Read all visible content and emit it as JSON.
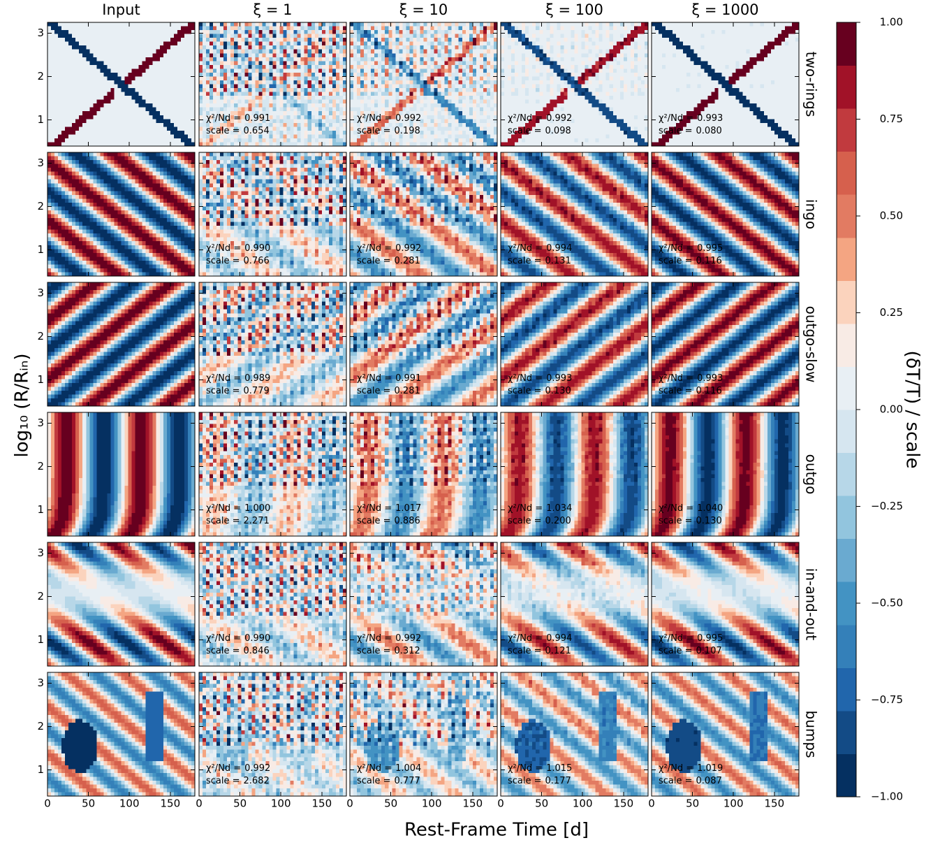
{
  "chart_data": {
    "type": "heatmap-grid",
    "columns": [
      "Input",
      "ξ = 1",
      "ξ = 10",
      "ξ = 100",
      "ξ = 1000"
    ],
    "rows": [
      "two-rings",
      "ingo",
      "outgo-slow",
      "outgo",
      "in-and-out",
      "bumps"
    ],
    "xlabel": "Rest-Frame Time [d]",
    "ylabel": "log₁₀ (R/Rᵢₙ)",
    "xlim": [
      0,
      180
    ],
    "xticks": [
      0,
      50,
      100,
      150
    ],
    "ylim": [
      0.4,
      3.25
    ],
    "yticks": [
      1,
      2,
      3
    ],
    "fit_label": "χ²/Nd =",
    "scale_label": "scale =",
    "chi2": [
      [
        0.991,
        0.992,
        0.992,
        0.993
      ],
      [
        0.99,
        0.992,
        0.994,
        0.995
      ],
      [
        0.989,
        0.991,
        0.993,
        0.993
      ],
      [
        1.0,
        1.017,
        1.034,
        1.04
      ],
      [
        0.99,
        0.992,
        0.994,
        0.995
      ],
      [
        0.992,
        1.004,
        1.015,
        1.019
      ]
    ],
    "chi2_labels": [
      [
        "0.991",
        "0.992",
        "0.992",
        "0.993"
      ],
      [
        "0.990",
        "0.992",
        "0.994",
        "0.995"
      ],
      [
        "0.989",
        "0.991",
        "0.993",
        "0.993"
      ],
      [
        "1.000",
        "1.017",
        "1.034",
        "1.040"
      ],
      [
        "0.990",
        "0.992",
        "0.994",
        "0.995"
      ],
      [
        "0.992",
        "1.004",
        "1.015",
        "1.019"
      ]
    ],
    "scale": [
      [
        0.654,
        0.198,
        0.098,
        0.08
      ],
      [
        0.766,
        0.281,
        0.131,
        0.116
      ],
      [
        0.779,
        0.281,
        0.13,
        0.116
      ],
      [
        2.271,
        0.886,
        0.2,
        0.13
      ],
      [
        0.846,
        0.312,
        0.121,
        0.107
      ],
      [
        2.682,
        0.777,
        0.177,
        0.087
      ]
    ],
    "scale_labels": [
      [
        "0.654",
        "0.198",
        "0.098",
        "0.080"
      ],
      [
        "0.766",
        "0.281",
        "0.131",
        "0.116"
      ],
      [
        "0.779",
        "0.281",
        "0.130",
        "0.116"
      ],
      [
        "2.271",
        "0.886",
        "0.200",
        "0.130"
      ],
      [
        "0.846",
        "0.312",
        "0.121",
        "0.107"
      ],
      [
        "2.682",
        "0.777",
        "0.177",
        "0.087"
      ]
    ],
    "colorbar": {
      "label": "(δT/T) / scale",
      "lim": [
        -1,
        1
      ],
      "ticks": [
        {
          "value": 1,
          "label": "1.00"
        },
        {
          "value": 0.75,
          "label": "0.75"
        },
        {
          "value": 0.5,
          "label": "0.50"
        },
        {
          "value": 0.25,
          "label": "0.25"
        },
        {
          "value": 0,
          "label": "0.00"
        },
        {
          "value": -0.25,
          "label": "−0.25"
        },
        {
          "value": -0.5,
          "label": "−0.50"
        },
        {
          "value": -0.75,
          "label": "−0.75"
        },
        {
          "value": -1,
          "label": "−1.00"
        }
      ],
      "colors": [
        "#053061",
        "#134b86",
        "#2166ac",
        "#3480b9",
        "#4393c3",
        "#6aaad0",
        "#92c5de",
        "#b7d7e8",
        "#d6e6f0",
        "#e8eff4",
        "#f8ebe5",
        "#fbd3bd",
        "#f4a582",
        "#e27b62",
        "#d6604d",
        "#c13a3e",
        "#a11228",
        "#67001f"
      ]
    }
  }
}
